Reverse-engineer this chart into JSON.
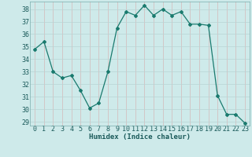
{
  "x": [
    0,
    1,
    2,
    3,
    4,
    5,
    6,
    7,
    8,
    9,
    10,
    11,
    12,
    13,
    14,
    15,
    16,
    17,
    18,
    19,
    20,
    21,
    22,
    23
  ],
  "y": [
    34.8,
    35.4,
    33.0,
    32.5,
    32.7,
    31.5,
    30.1,
    30.5,
    33.0,
    36.5,
    37.8,
    37.5,
    38.3,
    37.5,
    38.0,
    37.5,
    37.8,
    36.8,
    36.8,
    36.7,
    31.1,
    29.6,
    29.6,
    28.9
  ],
  "line_color": "#1a7a6e",
  "marker": "D",
  "marker_size": 2.0,
  "bg_color": "#ceeaea",
  "grid_color_major": "#b8d4d4",
  "grid_color_minor": "#d4b8b8",
  "xlabel": "Humidex (Indice chaleur)",
  "ylim": [
    28.7,
    38.6
  ],
  "xlim": [
    -0.5,
    23.5
  ],
  "yticks": [
    29,
    30,
    31,
    32,
    33,
    34,
    35,
    36,
    37,
    38
  ],
  "xticks": [
    0,
    1,
    2,
    3,
    4,
    5,
    6,
    7,
    8,
    9,
    10,
    11,
    12,
    13,
    14,
    15,
    16,
    17,
    18,
    19,
    20,
    21,
    22,
    23
  ],
  "label_fontsize": 6.5,
  "tick_fontsize": 6.0
}
